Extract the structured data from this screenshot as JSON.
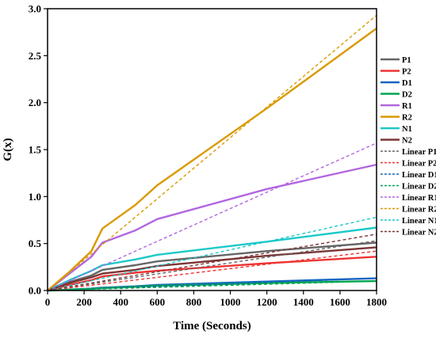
{
  "chart_data": {
    "type": "line",
    "title": "",
    "xlabel": "Time (Seconds)",
    "ylabel": "G(x)",
    "xlim": [
      0,
      1800
    ],
    "ylim": [
      0,
      3.0
    ],
    "xticks": [
      0,
      200,
      400,
      600,
      800,
      1000,
      1200,
      1400,
      1600,
      1800
    ],
    "yticks": [
      0.0,
      0.5,
      1.0,
      1.5,
      2.0,
      2.5,
      3.0
    ],
    "ytick_labels": [
      "0.0",
      "0.5",
      "1.0",
      "1.5",
      "2.0",
      "2.5",
      "3.0"
    ],
    "grid": false,
    "legend_position": "right",
    "series": [
      {
        "name": "P1",
        "color": "#666666",
        "style": "solid",
        "x": [
          0,
          120,
          240,
          300,
          480,
          600,
          1200,
          1800
        ],
        "y": [
          0,
          0.09,
          0.16,
          0.22,
          0.27,
          0.31,
          0.42,
          0.51
        ]
      },
      {
        "name": "P2",
        "color": "#ee3333",
        "style": "solid",
        "x": [
          0,
          120,
          240,
          300,
          480,
          600,
          1200,
          1800
        ],
        "y": [
          0,
          0.06,
          0.11,
          0.15,
          0.19,
          0.21,
          0.29,
          0.36
        ]
      },
      {
        "name": "D1",
        "color": "#1565c0",
        "style": "solid",
        "x": [
          0,
          120,
          240,
          300,
          480,
          600,
          1200,
          1800
        ],
        "y": [
          0,
          0.01,
          0.02,
          0.03,
          0.045,
          0.06,
          0.095,
          0.13
        ]
      },
      {
        "name": "D2",
        "color": "#00a651",
        "style": "solid",
        "x": [
          0,
          120,
          240,
          300,
          480,
          600,
          1200,
          1800
        ],
        "y": [
          0,
          0.01,
          0.018,
          0.025,
          0.04,
          0.05,
          0.08,
          0.1
        ]
      },
      {
        "name": "R1",
        "color": "#b266e0",
        "style": "solid",
        "x": [
          0,
          120,
          240,
          300,
          480,
          600,
          1200,
          1800
        ],
        "y": [
          0,
          0.18,
          0.36,
          0.51,
          0.64,
          0.76,
          1.08,
          1.34
        ]
      },
      {
        "name": "R2",
        "color": "#d99a00",
        "style": "solid",
        "x": [
          0,
          120,
          240,
          300,
          480,
          600,
          1200,
          1800
        ],
        "y": [
          0,
          0.2,
          0.42,
          0.66,
          0.91,
          1.12,
          1.94,
          2.79
        ]
      },
      {
        "name": "N1",
        "color": "#1cc8c8",
        "style": "solid",
        "x": [
          0,
          120,
          240,
          300,
          480,
          600,
          1200,
          1800
        ],
        "y": [
          0,
          0.11,
          0.21,
          0.27,
          0.33,
          0.38,
          0.52,
          0.67
        ]
      },
      {
        "name": "N2",
        "color": "#7b3535",
        "style": "solid",
        "x": [
          0,
          120,
          240,
          300,
          480,
          600,
          1200,
          1800
        ],
        "y": [
          0,
          0.08,
          0.14,
          0.18,
          0.22,
          0.26,
          0.37,
          0.46
        ]
      },
      {
        "name": "Linear P1",
        "color": "#666666",
        "style": "dash",
        "x": [
          0,
          1800
        ],
        "y": [
          0,
          0.53
        ]
      },
      {
        "name": "Linear P2",
        "color": "#ee3333",
        "style": "dash",
        "x": [
          0,
          1800
        ],
        "y": [
          0,
          0.42
        ]
      },
      {
        "name": "Linear D1",
        "color": "#1565c0",
        "style": "dash",
        "x": [
          0,
          1800
        ],
        "y": [
          0,
          0.13
        ]
      },
      {
        "name": "Linear D2",
        "color": "#00a651",
        "style": "dash",
        "x": [
          0,
          1800
        ],
        "y": [
          0,
          0.1
        ]
      },
      {
        "name": "Linear R1",
        "color": "#b266e0",
        "style": "dash",
        "x": [
          0,
          1800
        ],
        "y": [
          0,
          1.57
        ]
      },
      {
        "name": "Linear R2",
        "color": "#d99a00",
        "style": "dash",
        "x": [
          0,
          1800
        ],
        "y": [
          0,
          2.93
        ]
      },
      {
        "name": "Linear N1",
        "color": "#1cc8c8",
        "style": "dash",
        "x": [
          0,
          1800
        ],
        "y": [
          0,
          0.78
        ]
      },
      {
        "name": "Linear N2",
        "color": "#7b3535",
        "style": "dash",
        "x": [
          0,
          1800
        ],
        "y": [
          0,
          0.6
        ]
      }
    ]
  }
}
